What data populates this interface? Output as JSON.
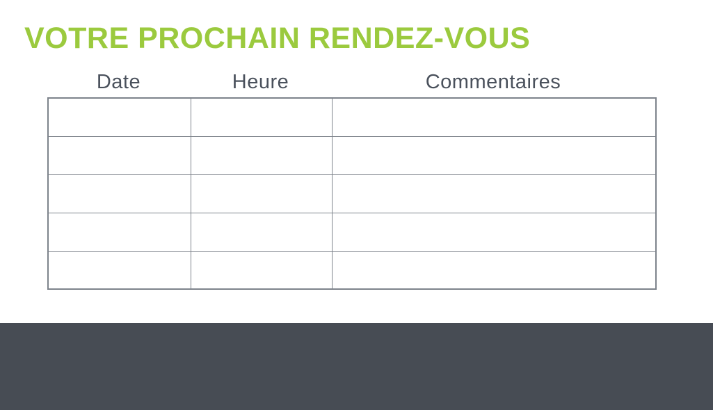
{
  "title": "VOTRE PROCHAIN RENDEZ-VOUS",
  "table": {
    "columns": [
      {
        "label": "Date"
      },
      {
        "label": "Heure"
      },
      {
        "label": "Commentaires"
      }
    ],
    "row_count": 5,
    "cell_value": ""
  },
  "colors": {
    "title_green": "#9BCA3E",
    "header_text": "#4A515C",
    "table_border": "#7D838B",
    "footer_background": "#474C54",
    "page_background": "#FFFFFF"
  }
}
